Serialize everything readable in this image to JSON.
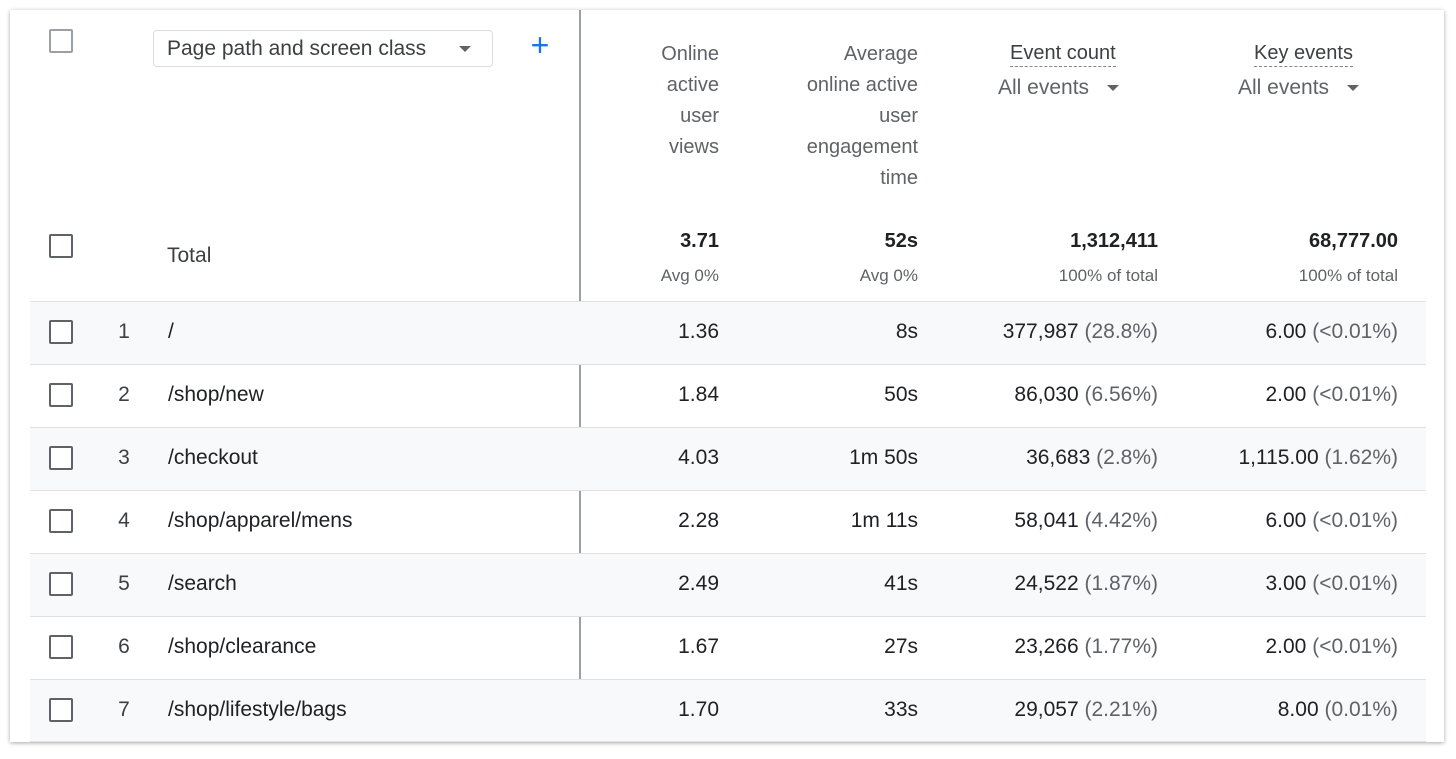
{
  "header": {
    "dimension_select": "Page path and screen class",
    "add_label": "+",
    "col_views": [
      "Online",
      "active",
      "user",
      "views"
    ],
    "col_engagement": [
      "Average",
      "online active",
      "user",
      "engagement",
      "time"
    ],
    "col_event_count": "Event count",
    "col_event_count_filter": "All events",
    "col_key_events": "Key events",
    "col_key_events_filter": "All events"
  },
  "total": {
    "label": "Total",
    "views": "3.71",
    "views_sub": "Avg 0%",
    "engagement": "52s",
    "engagement_sub": "Avg 0%",
    "event_count": "1,312,411",
    "event_count_sub": "100% of total",
    "key_events": "68,777.00",
    "key_events_sub": "100% of total"
  },
  "rows": [
    {
      "idx": "1",
      "path": "/",
      "views": "1.36",
      "engagement": "8s",
      "event_count": "377,987",
      "event_pct": "(28.8%)",
      "key_events": "6.00",
      "key_pct": "(<0.01%)"
    },
    {
      "idx": "2",
      "path": "/shop/new",
      "views": "1.84",
      "engagement": "50s",
      "event_count": "86,030",
      "event_pct": "(6.56%)",
      "key_events": "2.00",
      "key_pct": "(<0.01%)"
    },
    {
      "idx": "3",
      "path": "/checkout",
      "views": "4.03",
      "engagement": "1m 50s",
      "event_count": "36,683",
      "event_pct": "(2.8%)",
      "key_events": "1,115.00",
      "key_pct": "(1.62%)"
    },
    {
      "idx": "4",
      "path": "/shop/apparel/mens",
      "views": "2.28",
      "engagement": "1m 11s",
      "event_count": "58,041",
      "event_pct": "(4.42%)",
      "key_events": "6.00",
      "key_pct": "(<0.01%)"
    },
    {
      "idx": "5",
      "path": "/search",
      "views": "2.49",
      "engagement": "41s",
      "event_count": "24,522",
      "event_pct": "(1.87%)",
      "key_events": "3.00",
      "key_pct": "(<0.01%)"
    },
    {
      "idx": "6",
      "path": "/shop/clearance",
      "views": "1.67",
      "engagement": "27s",
      "event_count": "23,266",
      "event_pct": "(1.77%)",
      "key_events": "2.00",
      "key_pct": "(<0.01%)"
    },
    {
      "idx": "7",
      "path": "/shop/lifestyle/bags",
      "views": "1.70",
      "engagement": "33s",
      "event_count": "29,057",
      "event_pct": "(2.21%)",
      "key_events": "8.00",
      "key_pct": "(0.01%)"
    }
  ],
  "colors": {
    "accent": "#1a73e8",
    "row_shade": "#f8f9fa",
    "divider": "#9aa0a6"
  }
}
